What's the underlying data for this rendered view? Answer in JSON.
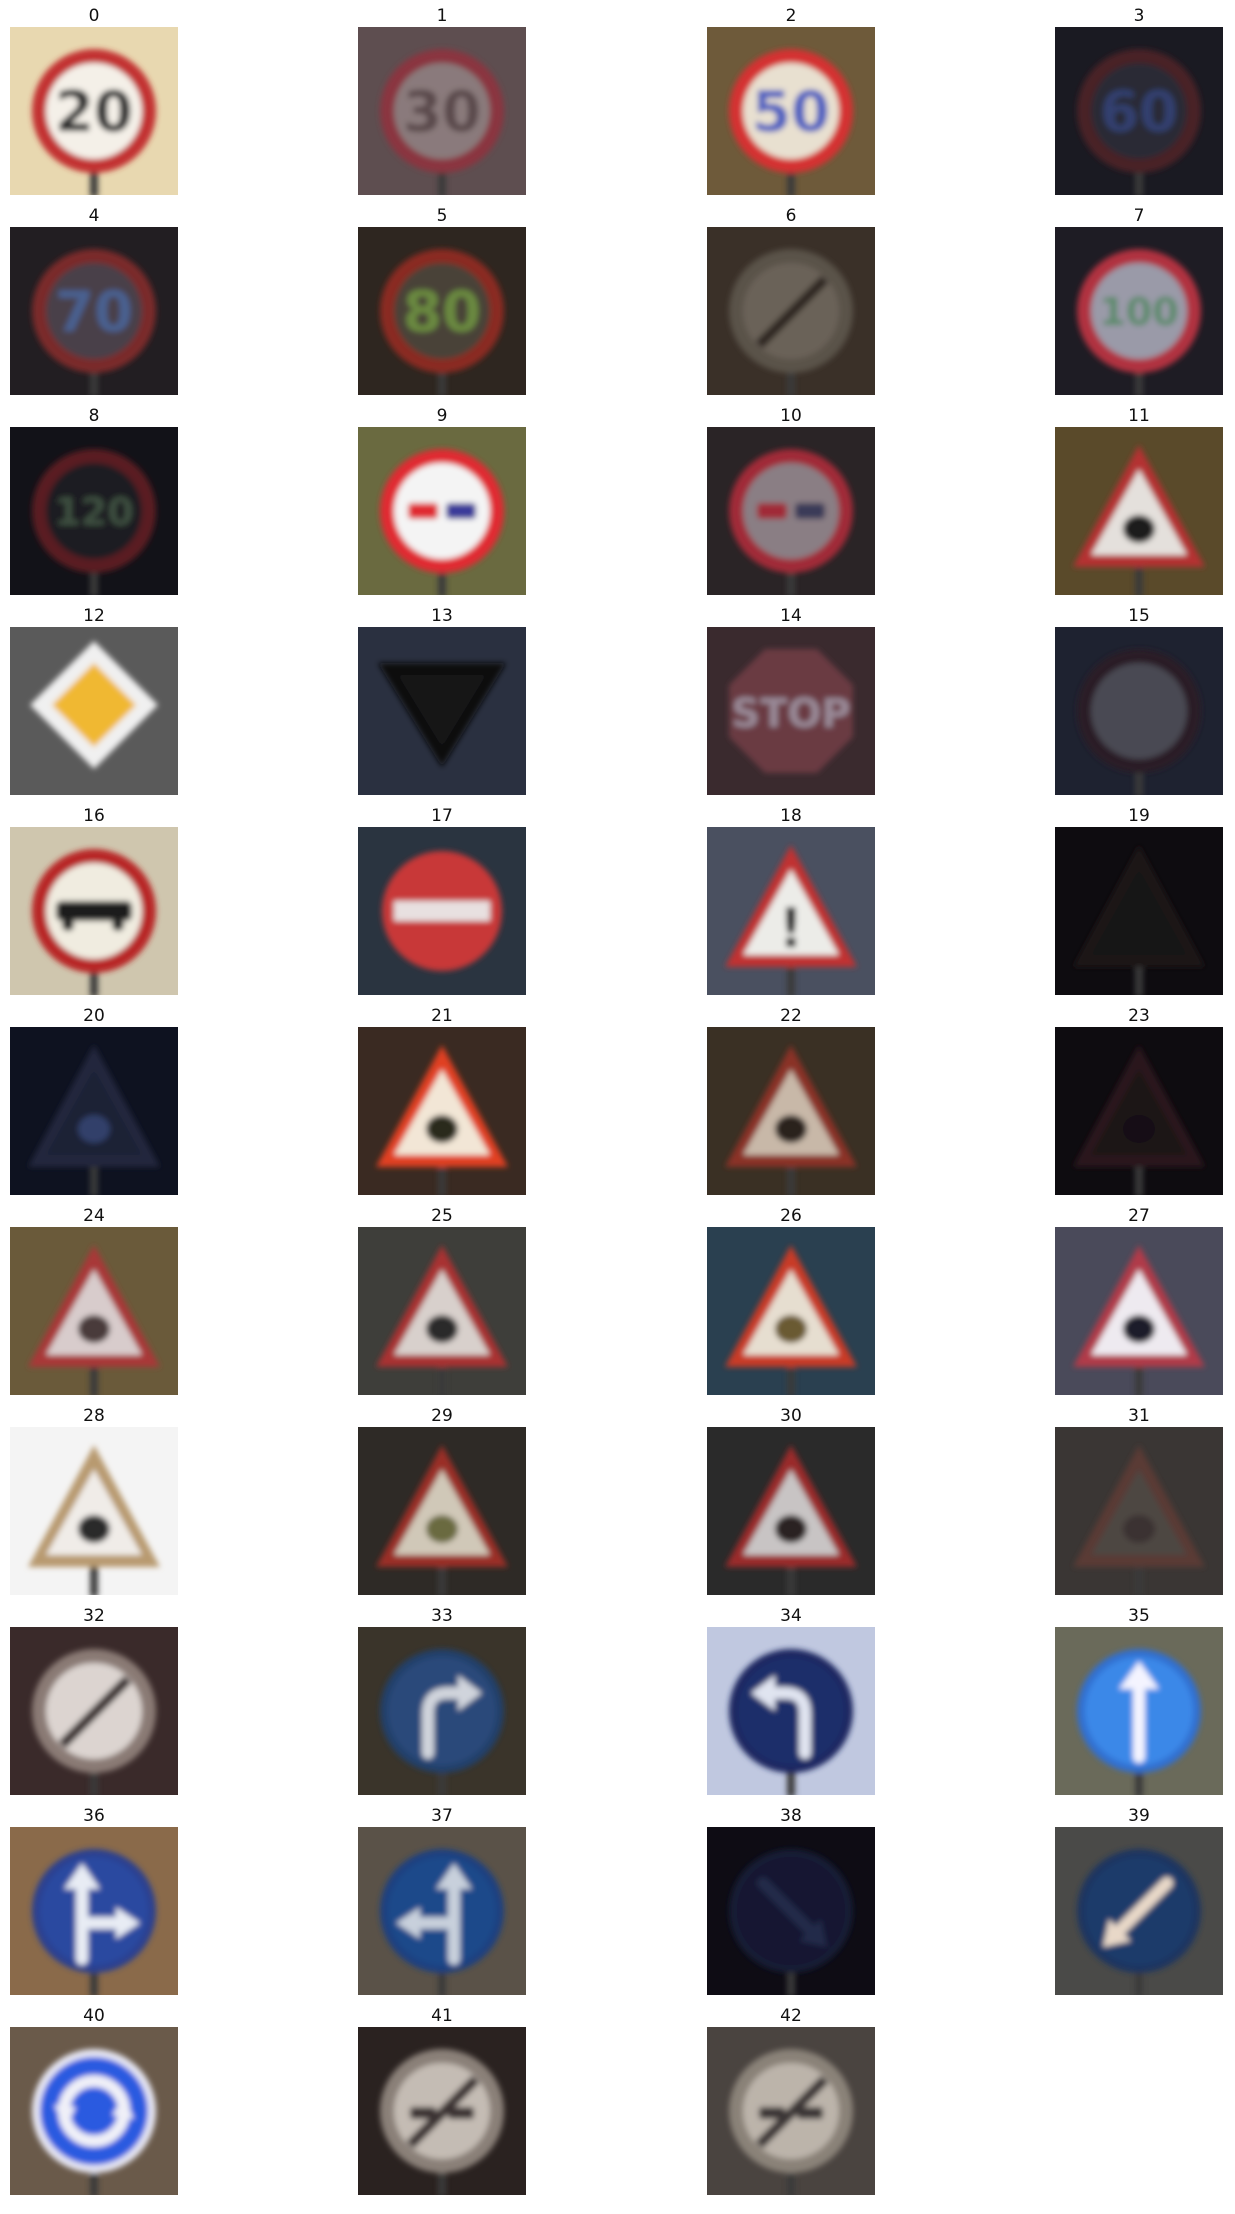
{
  "panels": [
    {
      "label": "0",
      "sign": "speed",
      "text": "20",
      "bg": "#e8d8b0",
      "face": "#f4f0e8",
      "ring": "#c23030",
      "ink": "#2a2a2a"
    },
    {
      "label": "1",
      "sign": "speed",
      "text": "30",
      "bg": "#5e4e50",
      "face": "#8a7a7c",
      "ring": "#8a3540",
      "ink": "#5a4a4c"
    },
    {
      "label": "2",
      "sign": "speed",
      "text": "50",
      "bg": "#6e5a3a",
      "face": "#e8e0d0",
      "ring": "#d43030",
      "ink": "#5060c0"
    },
    {
      "label": "3",
      "sign": "speed",
      "text": "60",
      "bg": "#1a1a22",
      "face": "#2a2a36",
      "ring": "#4a2028",
      "ink": "#304070"
    },
    {
      "label": "4",
      "sign": "speed",
      "text": "70",
      "bg": "#221e22",
      "face": "#4a4048",
      "ring": "#7a2a2a",
      "ink": "#4a6090"
    },
    {
      "label": "5",
      "sign": "speed",
      "text": "80",
      "bg": "#2e2620",
      "face": "#4a4238",
      "ring": "#8a2a22",
      "ink": "#6a8a40"
    },
    {
      "label": "6",
      "sign": "end-speed",
      "text": "",
      "bg": "#3a3028",
      "face": "#6a6258",
      "ring": "#5a524a",
      "ink": "#2e2620"
    },
    {
      "label": "7",
      "sign": "speed",
      "text": "100",
      "bg": "#1e1c24",
      "face": "#9a9aa8",
      "ring": "#b03040",
      "ink": "#5a8a6a"
    },
    {
      "label": "8",
      "sign": "speed",
      "text": "120",
      "bg": "#121218",
      "face": "#1e1c20",
      "ring": "#5a1e24",
      "ink": "#3e5040"
    },
    {
      "label": "9",
      "sign": "no-passing",
      "text": "",
      "bg": "#6a6a40",
      "face": "#f4f4f4",
      "ring": "#e02a30",
      "ink": "#3a3a9a"
    },
    {
      "label": "10",
      "sign": "no-passing",
      "text": "",
      "bg": "#2a2426",
      "face": "#8a7e84",
      "ring": "#a02a38",
      "ink": "#3a3a58"
    },
    {
      "label": "11",
      "sign": "warning",
      "text": "",
      "bg": "#5a4a2a",
      "face": "#e4e0dc",
      "ring": "#b43030",
      "ink": "#1e1e1e"
    },
    {
      "label": "12",
      "sign": "priority",
      "text": "",
      "bg": "#5a5a5a",
      "face": "#f0f0f0",
      "ring": "#f0b830",
      "ink": "#f0b830"
    },
    {
      "label": "13",
      "sign": "yield",
      "text": "",
      "bg": "#2a3040",
      "face": "#141418",
      "ring": "#0c0c10",
      "ink": "#0c0c10"
    },
    {
      "label": "14",
      "sign": "stop",
      "text": "STOP",
      "bg": "#3a2a2e",
      "face": "#6a3a42",
      "ring": "#7a3a44",
      "ink": "#9a8a98"
    },
    {
      "label": "15",
      "sign": "no-vehicles",
      "text": "",
      "bg": "#1e2230",
      "face": "#4a4a52",
      "ring": "#2a1e26",
      "ink": "#4a4a52"
    },
    {
      "label": "16",
      "sign": "no-trucks",
      "text": "",
      "bg": "#cfc6ae",
      "face": "#f0ece0",
      "ring": "#b82828",
      "ink": "#1e1e1e"
    },
    {
      "label": "17",
      "sign": "no-entry",
      "text": "",
      "bg": "#2a3440",
      "face": "#c83838",
      "ring": "#c83838",
      "ink": "#e8e0e0"
    },
    {
      "label": "18",
      "sign": "warning",
      "text": "!",
      "bg": "#4a5060",
      "face": "#ecece8",
      "ring": "#c03030",
      "ink": "#1e1e1e"
    },
    {
      "label": "19",
      "sign": "warning",
      "text": "",
      "bg": "#0e0c10",
      "face": "#161418",
      "ring": "#1e1418",
      "ink": "#141216"
    },
    {
      "label": "20",
      "sign": "warning",
      "text": "",
      "bg": "#0e1220",
      "face": "#1a2034",
      "ring": "#22283e",
      "ink": "#30406a"
    },
    {
      "label": "21",
      "sign": "warning",
      "text": "",
      "bg": "#3a2a22",
      "face": "#f2e6d6",
      "ring": "#e04020",
      "ink": "#2a2a1a"
    },
    {
      "label": "22",
      "sign": "warning",
      "text": "",
      "bg": "#3a3024",
      "face": "#c8b8a8",
      "ring": "#8a3028",
      "ink": "#2a241e"
    },
    {
      "label": "23",
      "sign": "warning",
      "text": "",
      "bg": "#0e0c10",
      "face": "#1a1418",
      "ring": "#2a141a",
      "ink": "#141014"
    },
    {
      "label": "24",
      "sign": "warning",
      "text": "",
      "bg": "#6a5a3a",
      "face": "#d8cccc",
      "ring": "#a83838",
      "ink": "#4a3a3a"
    },
    {
      "label": "25",
      "sign": "warning",
      "text": "",
      "bg": "#3e3e3a",
      "face": "#d8d0cc",
      "ring": "#a83030",
      "ink": "#2a2a2a"
    },
    {
      "label": "26",
      "sign": "warning",
      "text": "",
      "bg": "#2a4050",
      "face": "#e6ded0",
      "ring": "#c83a28",
      "ink": "#6a5a30"
    },
    {
      "label": "27",
      "sign": "warning",
      "text": "",
      "bg": "#4a4a5a",
      "face": "#eeeaf0",
      "ring": "#b03a48",
      "ink": "#1e1e2a"
    },
    {
      "label": "28",
      "sign": "warning",
      "text": "",
      "bg": "#f4f4f4",
      "face": "#f0ece8",
      "ring": "#b89a70",
      "ink": "#2a2a2a"
    },
    {
      "label": "29",
      "sign": "warning",
      "text": "",
      "bg": "#2e2a26",
      "face": "#d0c8b8",
      "ring": "#9a2e28",
      "ink": "#6a6a40"
    },
    {
      "label": "30",
      "sign": "warning",
      "text": "",
      "bg": "#2a2a2a",
      "face": "#c8c4c4",
      "ring": "#9a2a2a",
      "ink": "#2a2424"
    },
    {
      "label": "31",
      "sign": "warning",
      "text": "",
      "bg": "#3a3634",
      "face": "#4e4642",
      "ring": "#5a3a36",
      "ink": "#3a3230"
    },
    {
      "label": "32",
      "sign": "end-restrictions",
      "text": "",
      "bg": "#3a2a2a",
      "face": "#dcd4d0",
      "ring": "#8a7a74",
      "ink": "#3a3030"
    },
    {
      "label": "33",
      "sign": "turn-right",
      "text": "",
      "bg": "#3a342a",
      "face": "#2a4a7a",
      "ring": "#22406a",
      "ink": "#d0d4dc"
    },
    {
      "label": "34",
      "sign": "turn-left",
      "text": "",
      "bg": "#c0c8e0",
      "face": "#1e2e6a",
      "ring": "#1a2860",
      "ink": "#e0e4f0"
    },
    {
      "label": "35",
      "sign": "ahead-only",
      "text": "",
      "bg": "#6a6a5a",
      "face": "#3a88e8",
      "ring": "#3070d0",
      "ink": "#f4f4ff"
    },
    {
      "label": "36",
      "sign": "straight-right",
      "text": "",
      "bg": "#8a6a4a",
      "face": "#2a4aa0",
      "ring": "#2a4090",
      "ink": "#e8ecf4"
    },
    {
      "label": "37",
      "sign": "straight-left",
      "text": "",
      "bg": "#5a5248",
      "face": "#1e4a8a",
      "ring": "#1e4080",
      "ink": "#c8d0dc"
    },
    {
      "label": "38",
      "sign": "keep-right",
      "text": "",
      "bg": "#0e0c14",
      "face": "#141830",
      "ring": "#141a34",
      "ink": "#222a48"
    },
    {
      "label": "39",
      "sign": "keep-left",
      "text": "",
      "bg": "#4a4a48",
      "face": "#1e3a6a",
      "ring": "#1e3460",
      "ink": "#e8d8c8"
    },
    {
      "label": "40",
      "sign": "roundabout",
      "text": "",
      "bg": "#6a5a4a",
      "face": "#2a5ae0",
      "ring": "#e8e8f4",
      "ink": "#f0f0f8"
    },
    {
      "label": "41",
      "sign": "end-no-passing",
      "text": "",
      "bg": "#2a2220",
      "face": "#c4bcb4",
      "ring": "#8a8078",
      "ink": "#3a3232"
    },
    {
      "label": "42",
      "sign": "end-no-passing",
      "text": "",
      "bg": "#4a4440",
      "face": "#bcb4aa",
      "ring": "#8a8278",
      "ink": "#3a3434"
    }
  ]
}
